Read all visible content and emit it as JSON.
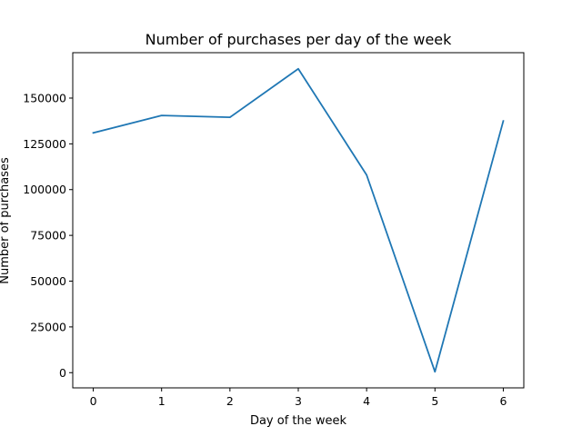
{
  "chart_data": {
    "type": "line",
    "title": "Number of purchases per day of the week",
    "xlabel": "Day of the week",
    "ylabel": "Number of purchases",
    "x": [
      0,
      1,
      2,
      3,
      4,
      5,
      6
    ],
    "series": [
      {
        "values": [
          131000,
          140500,
          139500,
          166000,
          108000,
          500,
          137500
        ]
      }
    ],
    "xlim": [
      -0.3,
      6.3
    ],
    "ylim": [
      -8300,
      174800
    ],
    "xticks": [
      0,
      1,
      2,
      3,
      4,
      5,
      6
    ],
    "yticks": [
      0,
      25000,
      50000,
      75000,
      100000,
      125000,
      150000
    ],
    "grid": false,
    "line_color": "#1f77b4"
  }
}
